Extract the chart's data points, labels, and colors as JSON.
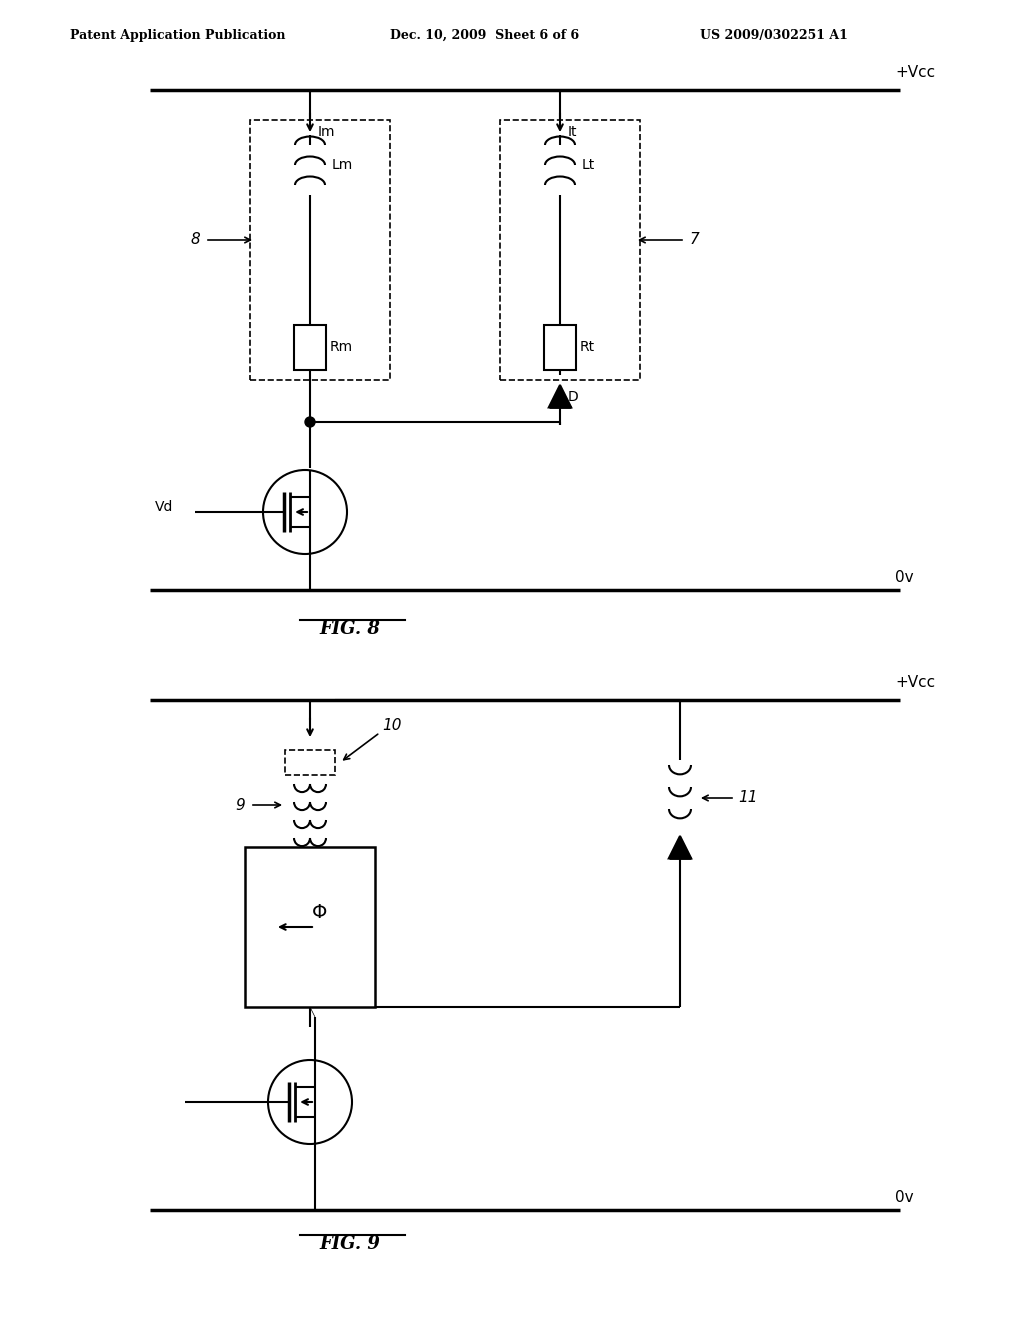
{
  "bg_color": "#ffffff",
  "line_color": "#000000",
  "header_text": "Patent Application Publication",
  "header_date": "Dec. 10, 2009  Sheet 6 of 6",
  "header_patent": "US 2009/0302251 A1",
  "fig8_label": "FIG. 8",
  "fig9_label": "FIG. 9",
  "vcc_label": "+Vcc",
  "ov_label": "0v",
  "vd_label": "Vd",
  "im_label": "Im",
  "it_label": "It",
  "lm_label": "Lm",
  "lt_label": "Lt",
  "rm_label": "Rm",
  "rt_label": "Rt",
  "d_label": "D",
  "label8": "8",
  "label7": "7",
  "label9": "9",
  "label10": "10",
  "label11": "11",
  "phi_label": "Φ"
}
